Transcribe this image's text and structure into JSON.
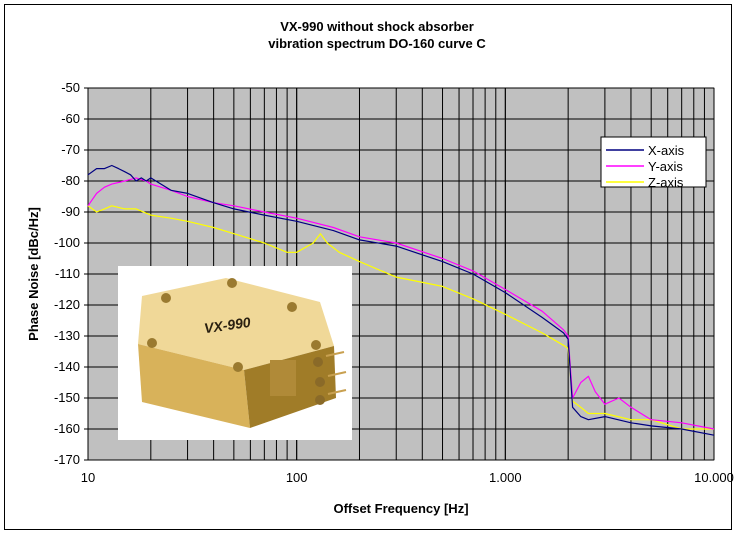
{
  "chart_data": {
    "type": "line",
    "title_line1": "VX-990 without shock absorber",
    "title_line2": "vibration spectrum DO-160 curve C",
    "xlabel": "Offset Frequency [Hz]",
    "ylabel": "Phase Noise [dBc/Hz]",
    "x_scale": "log",
    "xlim": [
      10,
      10000
    ],
    "ylim": [
      -170,
      -50
    ],
    "x_ticks": [
      "10",
      "100",
      "1.000",
      "10.000"
    ],
    "y_ticks": [
      "-50",
      "-60",
      "-70",
      "-80",
      "-90",
      "-100",
      "-110",
      "-120",
      "-130",
      "-140",
      "-150",
      "-160",
      "-170"
    ],
    "grid": true,
    "plot_background": "#c0c0c0",
    "legend_position": "top-right",
    "series": [
      {
        "name": "X-axis",
        "color": "#000080",
        "x": [
          10,
          11,
          12,
          13,
          14,
          15,
          16,
          17,
          18,
          19,
          20,
          25,
          30,
          40,
          50,
          70,
          100,
          150,
          200,
          300,
          500,
          700,
          1000,
          1500,
          1900,
          2000,
          2100,
          2300,
          2500,
          3000,
          4000,
          5000,
          7000,
          10000
        ],
        "y": [
          -78,
          -76,
          -76,
          -75,
          -76,
          -77,
          -78,
          -80,
          -79,
          -80,
          -79,
          -83,
          -84,
          -87,
          -89,
          -91,
          -93,
          -96,
          -99,
          -101,
          -106,
          -110,
          -116,
          -124,
          -129,
          -131,
          -153,
          -156,
          -157,
          -156,
          -158,
          -159,
          -160,
          -162
        ]
      },
      {
        "name": "Y-axis",
        "color": "#ff00ff",
        "x": [
          10,
          11,
          12,
          13,
          15,
          17,
          19,
          20,
          25,
          30,
          40,
          50,
          70,
          100,
          150,
          200,
          300,
          500,
          700,
          1000,
          1500,
          1900,
          2000,
          2100,
          2300,
          2500,
          2700,
          3000,
          3500,
          4000,
          5000,
          7000,
          10000
        ],
        "y": [
          -88,
          -84,
          -82,
          -81,
          -80,
          -79,
          -80,
          -81,
          -83,
          -85,
          -87,
          -88,
          -90,
          -92,
          -95,
          -98,
          -100,
          -105,
          -109,
          -115,
          -122,
          -128,
          -130,
          -150,
          -145,
          -143,
          -148,
          -152,
          -150,
          -153,
          -157,
          -158,
          -160
        ]
      },
      {
        "name": "Z-axis",
        "color": "#ffff00",
        "x": [
          10,
          11,
          12,
          13,
          15,
          17,
          20,
          25,
          30,
          40,
          50,
          70,
          90,
          100,
          120,
          130,
          140,
          160,
          200,
          300,
          500,
          700,
          1000,
          1500,
          1900,
          2000,
          2100,
          2300,
          2500,
          3000,
          4000,
          5000,
          7000,
          10000
        ],
        "y": [
          -88,
          -90,
          -89,
          -88,
          -89,
          -89,
          -91,
          -92,
          -93,
          -95,
          -97,
          -100,
          -103,
          -103,
          -100,
          -97,
          -100,
          -103,
          -106,
          -111,
          -114,
          -118,
          -123,
          -129,
          -133,
          -134,
          -151,
          -153,
          -155,
          -155,
          -157,
          -157,
          -160,
          -160
        ]
      }
    ]
  },
  "photo": {
    "label": "VX-990",
    "body_color": "#d8b25a",
    "highlight_color": "#f0d898",
    "shadow_color": "#a07c28"
  }
}
